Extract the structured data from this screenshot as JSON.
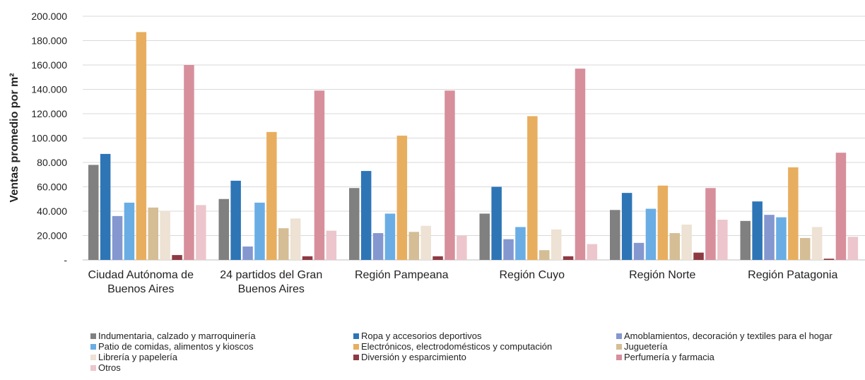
{
  "chart_data": {
    "type": "bar",
    "title": "",
    "xlabel": "",
    "ylabel": "Ventas promedio por m²",
    "ylim": [
      0,
      200000
    ],
    "ytick_values": [
      0,
      20000,
      40000,
      60000,
      80000,
      100000,
      120000,
      140000,
      160000,
      180000,
      200000
    ],
    "ytick_labels": [
      "-",
      "20.000",
      "40.000",
      "60.000",
      "80.000",
      "100.000",
      "120.000",
      "140.000",
      "160.000",
      "180.000",
      "200.000"
    ],
    "grid": true,
    "legend_position": "bottom",
    "categories": [
      [
        "Ciudad Autónoma de",
        "Buenos Aires"
      ],
      [
        "24 partidos del Gran",
        "Buenos Aires"
      ],
      [
        "Región Pampeana"
      ],
      [
        "Región Cuyo"
      ],
      [
        "Región Norte"
      ],
      [
        "Región Patagonia"
      ]
    ],
    "series": [
      {
        "name": "Indumentaria, calzado y marroquinería",
        "color": "#808080",
        "values": [
          78000,
          50000,
          59000,
          38000,
          41000,
          32000
        ]
      },
      {
        "name": "Ropa y accesorios deportivos",
        "color": "#2e75b6",
        "values": [
          87000,
          65000,
          73000,
          60000,
          55000,
          48000
        ]
      },
      {
        "name": "Amoblamientos, decoración y textiles para el hogar",
        "color": "#8497cf",
        "values": [
          36000,
          11000,
          22000,
          17000,
          14000,
          37000
        ]
      },
      {
        "name": "Patio de comidas, alimentos y kioscos",
        "color": "#6aade4",
        "values": [
          47000,
          47000,
          38000,
          27000,
          42000,
          35000
        ]
      },
      {
        "name": "Electrónicos, electrodomésticos y computación",
        "color": "#e8ae5f",
        "values": [
          187000,
          105000,
          102000,
          118000,
          61000,
          76000
        ]
      },
      {
        "name": "Juguetería",
        "color": "#d5bd95",
        "values": [
          43000,
          26000,
          23000,
          8000,
          22000,
          18000
        ]
      },
      {
        "name": "Librería y papelería",
        "color": "#ede2d3",
        "values": [
          40000,
          34000,
          28000,
          25000,
          29000,
          27000
        ]
      },
      {
        "name": "Diversión y esparcimiento",
        "color": "#8e3a43",
        "values": [
          4000,
          3000,
          3000,
          3000,
          6000,
          1000
        ]
      },
      {
        "name": "Perfumería y farmacia",
        "color": "#d78f9c",
        "values": [
          160000,
          139000,
          139000,
          157000,
          59000,
          88000
        ]
      },
      {
        "name": "Otros",
        "color": "#ecc6cc",
        "values": [
          45000,
          24000,
          20000,
          13000,
          33000,
          19000
        ]
      }
    ]
  }
}
